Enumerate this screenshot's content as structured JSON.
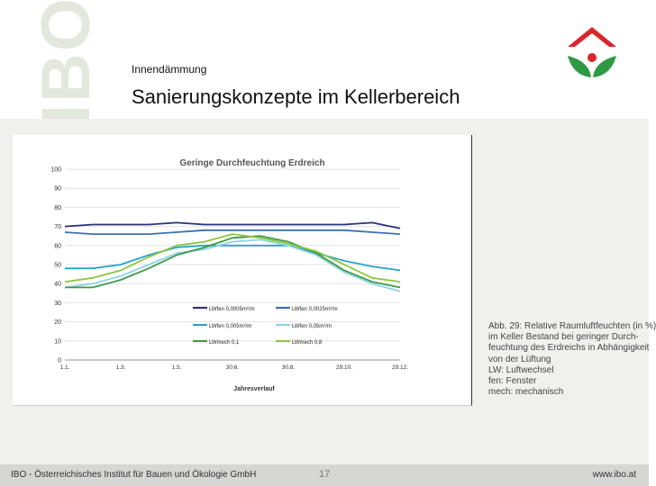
{
  "watermark": {
    "text": "IBO"
  },
  "header": {
    "subtitle": "Innendämmung",
    "title": "Sanierungskonzepte im Kellerbereich"
  },
  "logo": {
    "icon": "ibo-house-leaf-logo",
    "roof_color": "#d9262b",
    "leaf_color": "#2e9b44"
  },
  "chart_data": {
    "type": "line",
    "title": "Geringe Durchfeuchtung Erdreich",
    "xlabel": "Jahresverlauf",
    "ylabel": "",
    "ylim": [
      0,
      100
    ],
    "yticks": [
      0,
      10,
      20,
      30,
      40,
      50,
      60,
      70,
      80,
      90,
      100
    ],
    "grid": true,
    "x": [
      0,
      1,
      2,
      3,
      4,
      5,
      6,
      7,
      8,
      9,
      10,
      11,
      12
    ],
    "xtick_positions": [
      0,
      2,
      4,
      6,
      8,
      10,
      12
    ],
    "xtick_labels": [
      "1.1.",
      "1.3.",
      "1.5.",
      "30.6.",
      "30.8.",
      "29.10.",
      "29.12."
    ],
    "series": [
      {
        "name": "LWfen 0,0005m²/m",
        "color": "#2c2f7a",
        "values": [
          70,
          71,
          71,
          71,
          72,
          71,
          71,
          71,
          71,
          71,
          71,
          72,
          69
        ]
      },
      {
        "name": "LWfen 0,0025m²/m",
        "color": "#3b6fb6",
        "values": [
          67,
          66,
          66,
          66,
          67,
          68,
          68,
          68,
          68,
          68,
          68,
          67,
          66
        ]
      },
      {
        "name": "LWfen 0,005m²/m",
        "color": "#2aa3c9",
        "values": [
          48,
          48,
          50,
          55,
          59,
          60,
          60,
          60,
          60,
          56,
          52,
          49,
          47
        ]
      },
      {
        "name": "LWfen 0,05m²/m",
        "color": "#8fd3e6",
        "values": [
          38,
          40,
          44,
          50,
          56,
          58,
          62,
          63,
          60,
          55,
          46,
          40,
          36
        ]
      },
      {
        "name": "LWmech 0,1",
        "color": "#3d9a47",
        "values": [
          38,
          38,
          42,
          48,
          55,
          59,
          64,
          65,
          62,
          56,
          47,
          41,
          38
        ]
      },
      {
        "name": "LWmech 0,8",
        "color": "#8cc63f",
        "values": [
          41,
          43,
          47,
          54,
          60,
          62,
          66,
          64,
          61,
          57,
          50,
          43,
          41
        ]
      }
    ],
    "legend_position": "bottom-center",
    "caption": [
      "Abb. 29: Relative Raumluftfeuchten (in %)",
      "im Keller Bestand bei geringer Durch-",
      "feuchtung des Erdreichs in Abhängigkeit",
      "von der Lüftung",
      "LW: Luftwechsel",
      "fen: Fenster",
      "mech: mechanisch"
    ]
  },
  "footer": {
    "left": "IBO - Österreichisches Institut für Bauen und Ökologie GmbH",
    "page": "17",
    "right": "www.ibo.at"
  }
}
